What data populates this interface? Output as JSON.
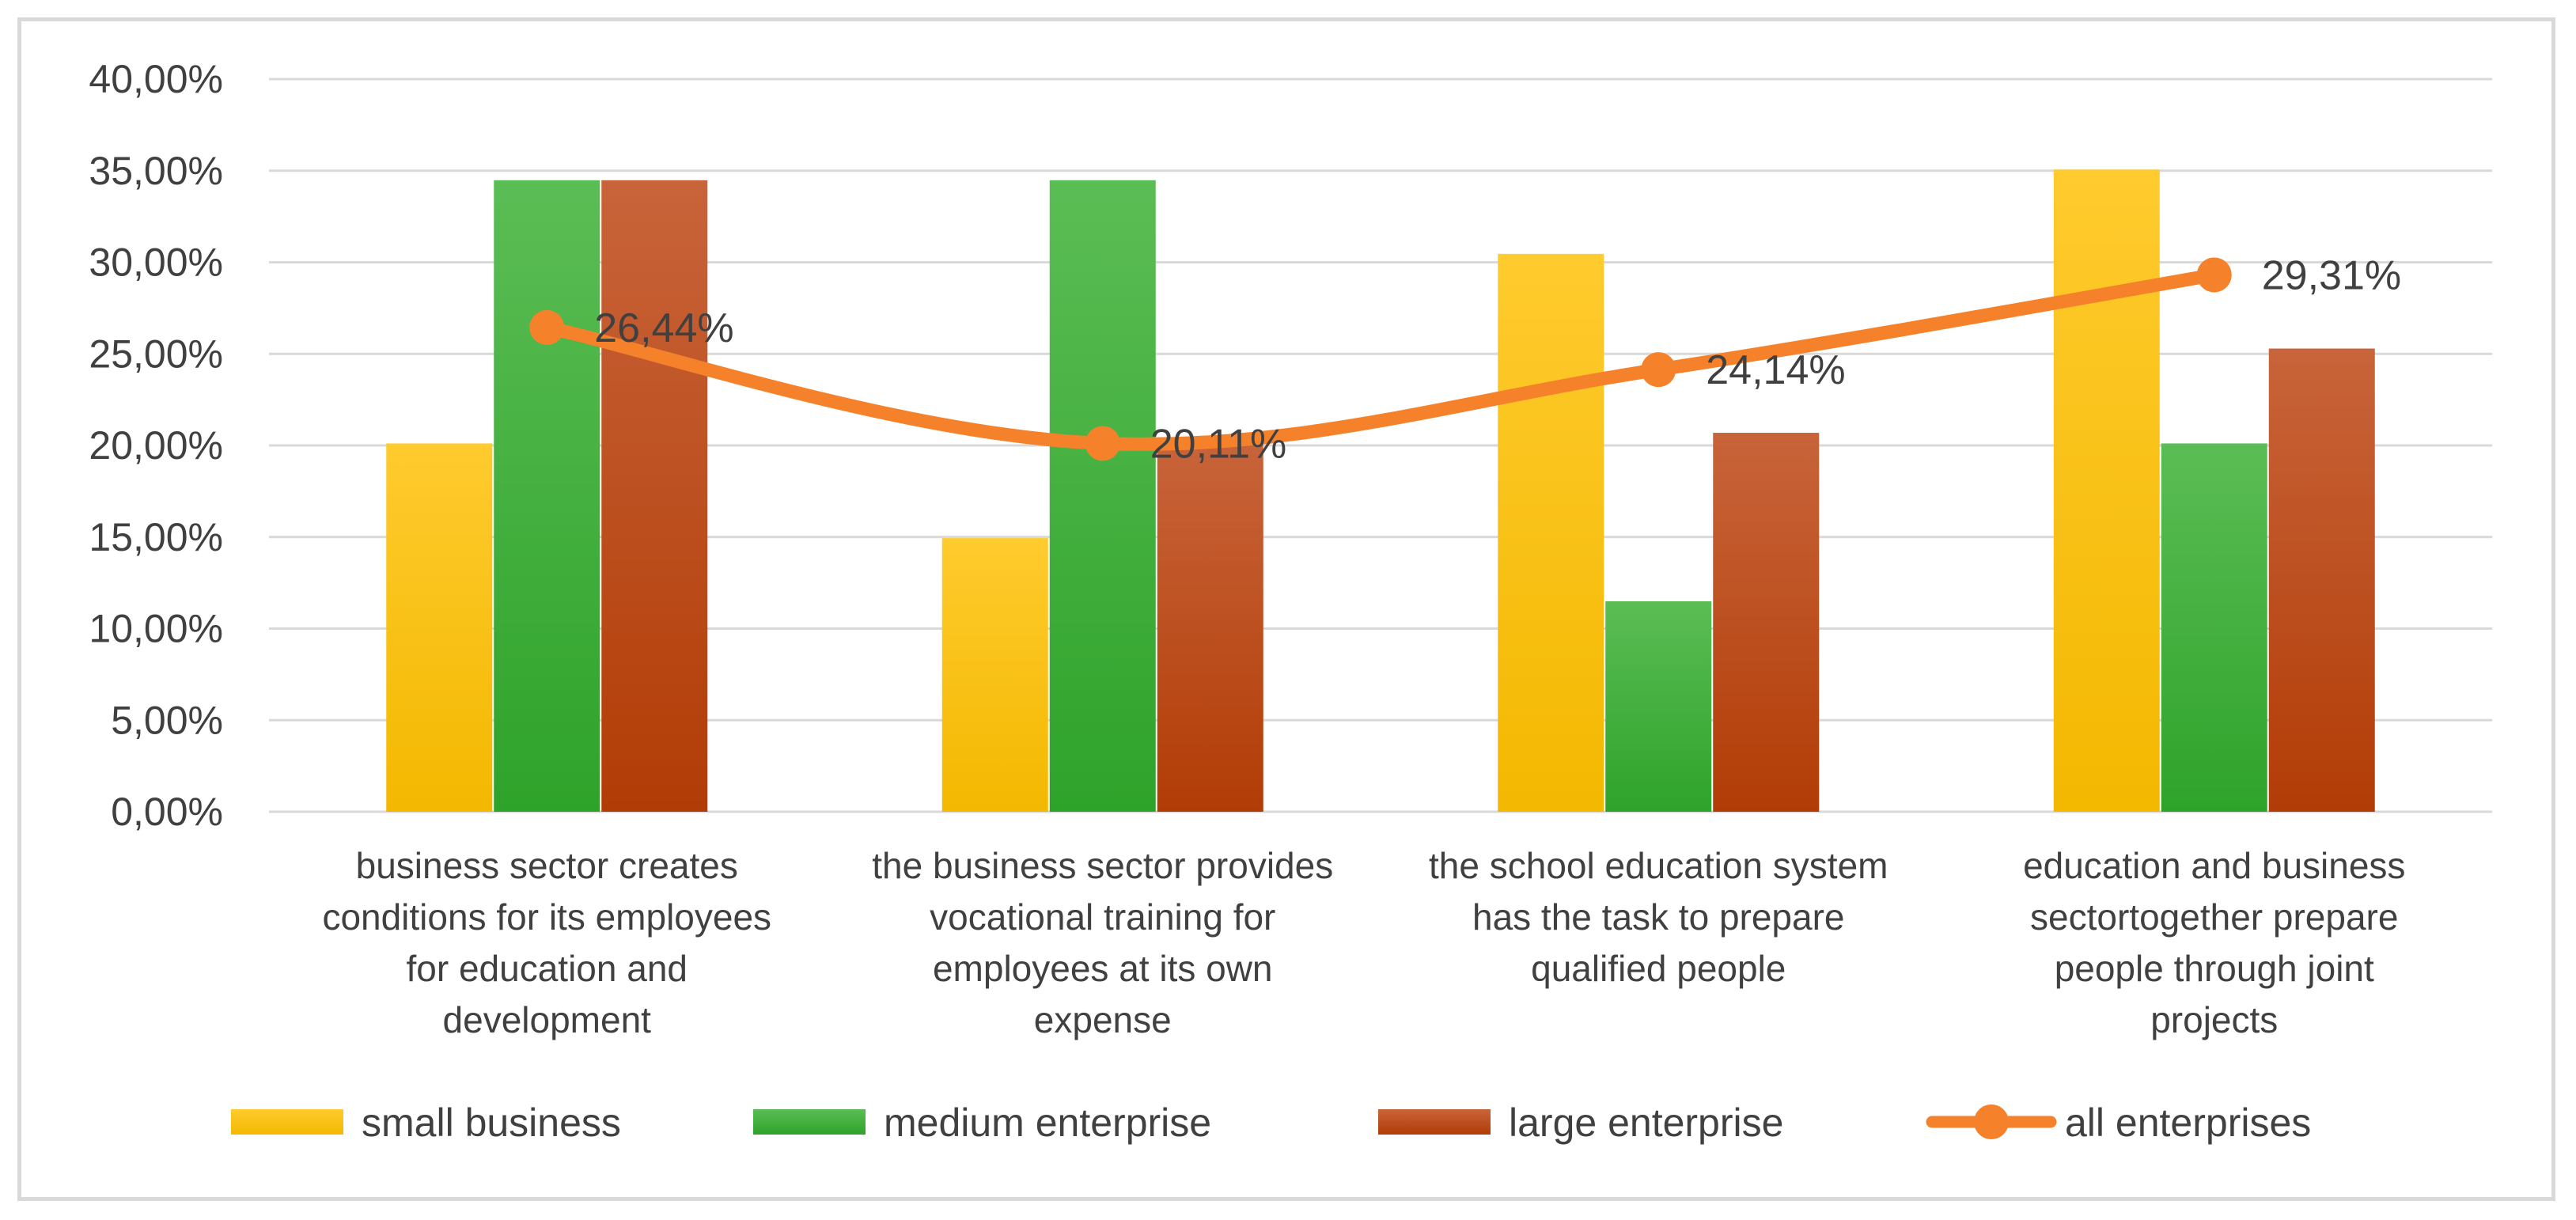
{
  "chart_data": {
    "type": "bar",
    "title": "",
    "xlabel": "",
    "ylabel": "",
    "ylim": [
      0,
      0.4
    ],
    "y_ticks": [
      "0,00%",
      "5,00%",
      "10,00%",
      "15,00%",
      "20,00%",
      "25,00%",
      "30,00%",
      "35,00%",
      "40,00%"
    ],
    "grid": true,
    "legend_position": "bottom",
    "categories": [
      [
        "business sector creates",
        "conditions for its employees",
        "for education and",
        "development"
      ],
      [
        "the business sector provides",
        "vocational training for",
        "employees at its own",
        "expense"
      ],
      [
        "the school education system",
        "has the task to prepare",
        "qualified people"
      ],
      [
        "education and business",
        "sectortogether prepare",
        "people through joint",
        "projects"
      ]
    ],
    "series": [
      {
        "name": "small business",
        "kind": "bar",
        "color": "#ffc000",
        "values": [
          0.2011,
          0.1494,
          0.3046,
          0.3506
        ]
      },
      {
        "name": "medium enterprise",
        "kind": "bar",
        "color": "#3aaa35",
        "values": [
          0.3448,
          0.3448,
          0.1149,
          0.2011
        ]
      },
      {
        "name": "large enterprise",
        "kind": "bar",
        "color": "#c55a11",
        "values": [
          0.3448,
          0.2011,
          0.2069,
          0.2529
        ]
      },
      {
        "name": "all enterprises",
        "kind": "line",
        "color": "#f5822b",
        "values": [
          0.2644,
          0.2011,
          0.2414,
          0.2931
        ],
        "labels": [
          "26,44%",
          "20,11%",
          "24,14%",
          "29,31%"
        ]
      }
    ]
  }
}
